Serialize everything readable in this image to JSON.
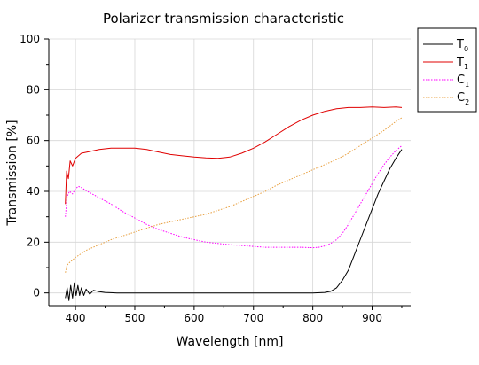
{
  "chart_data": {
    "type": "line",
    "title": "Polarizer transmission characteristic",
    "xlabel": "Wavelength [nm]",
    "ylabel": "Transmission [%]",
    "xlim": [
      355,
      965
    ],
    "ylim": [
      -5,
      100
    ],
    "x_ticks": [
      400,
      500,
      600,
      700,
      800,
      900
    ],
    "y_ticks": [
      0,
      20,
      40,
      60,
      80,
      100
    ],
    "grid": true,
    "legend_position": "outside-right-top",
    "series": [
      {
        "name": "T",
        "subscript": "0",
        "color": "#000000",
        "style": "solid",
        "x": [
          383,
          386,
          389,
          392,
          395,
          398,
          401,
          404,
          407,
          410,
          414,
          418,
          424,
          430,
          440,
          450,
          470,
          500,
          550,
          600,
          650,
          700,
          750,
          800,
          820,
          830,
          840,
          850,
          860,
          870,
          880,
          890,
          900,
          910,
          920,
          930,
          940,
          950
        ],
        "y": [
          -2,
          2,
          -3,
          3,
          -2,
          4,
          -1,
          3,
          -1,
          2,
          -1,
          1.5,
          -0.5,
          1,
          0.5,
          0.2,
          0,
          0,
          0,
          0,
          0,
          0,
          0,
          0,
          0.2,
          0.6,
          2,
          5,
          9,
          15,
          21,
          27,
          33,
          39,
          44,
          49,
          53,
          56.5
        ]
      },
      {
        "name": "T",
        "subscript": "1",
        "color": "#e00000",
        "style": "solid",
        "x": [
          383,
          385,
          388,
          391,
          395,
          400,
          410,
          420,
          440,
          460,
          480,
          500,
          520,
          540,
          560,
          580,
          600,
          620,
          640,
          660,
          680,
          700,
          720,
          740,
          760,
          780,
          800,
          820,
          840,
          860,
          880,
          900,
          920,
          940,
          950
        ],
        "y": [
          35,
          48,
          45,
          52,
          50,
          53,
          55,
          55.5,
          56.5,
          57,
          57,
          57,
          56.5,
          55.5,
          54.5,
          54,
          53.5,
          53.2,
          53,
          53.5,
          55,
          57,
          59.5,
          62.5,
          65.5,
          68,
          70,
          71.5,
          72.5,
          73,
          73,
          73.2,
          73,
          73.2,
          73
        ]
      },
      {
        "name": "C",
        "subscript": "1",
        "color": "#ff00ff",
        "style": "dotted",
        "x": [
          383,
          386,
          390,
          395,
          400,
          405,
          410,
          420,
          440,
          460,
          480,
          500,
          520,
          540,
          560,
          580,
          600,
          620,
          640,
          660,
          680,
          700,
          720,
          740,
          760,
          780,
          800,
          810,
          820,
          830,
          840,
          850,
          860,
          870,
          880,
          890,
          900,
          910,
          920,
          930,
          940,
          950
        ],
        "y": [
          30,
          38,
          40,
          39,
          41,
          42,
          41.5,
          40,
          37.5,
          35,
          32,
          29.5,
          27,
          25,
          23.5,
          22,
          21,
          20,
          19.5,
          19,
          18.7,
          18.3,
          18,
          18,
          18,
          18,
          17.8,
          18,
          18.5,
          19.5,
          21,
          23.5,
          27,
          31,
          35,
          39,
          43,
          47,
          50.5,
          53.5,
          56,
          58
        ]
      },
      {
        "name": "C",
        "subscript": "2",
        "color": "#e8a040",
        "style": "dotted",
        "x": [
          383,
          386,
          390,
          395,
          400,
          410,
          420,
          440,
          460,
          480,
          500,
          520,
          540,
          560,
          580,
          600,
          620,
          640,
          660,
          680,
          700,
          720,
          740,
          760,
          780,
          800,
          820,
          840,
          860,
          880,
          900,
          920,
          940,
          950
        ],
        "y": [
          8,
          11,
          12,
          13,
          14,
          15.5,
          17,
          19,
          21,
          22.5,
          24,
          25.5,
          27,
          28,
          29,
          30,
          31,
          32.5,
          34,
          36,
          38,
          40,
          42.5,
          44.5,
          46.5,
          48.5,
          50.5,
          52.5,
          55,
          58,
          61,
          64,
          67.5,
          69
        ]
      }
    ]
  }
}
